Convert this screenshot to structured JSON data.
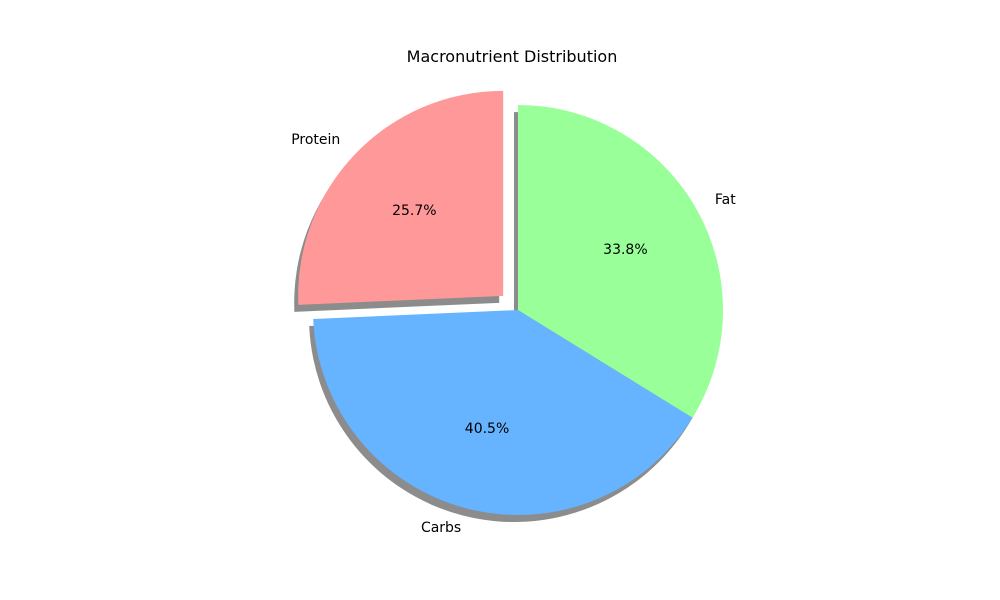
{
  "chart_data": {
    "type": "pie",
    "title": "Macronutrient Distribution",
    "slices": [
      {
        "label": "Protein",
        "value": 25.7,
        "pct_label": "25.7%",
        "color": "#ff9999",
        "exploded": true
      },
      {
        "label": "Carbs",
        "value": 40.5,
        "pct_label": "40.5%",
        "color": "#66b3ff",
        "exploded": false
      },
      {
        "label": "Fat",
        "value": 33.8,
        "pct_label": "33.8%",
        "color": "#99ff99",
        "exploded": false
      }
    ],
    "start_angle_deg": 90,
    "direction": "counterclockwise",
    "shadow": true
  }
}
